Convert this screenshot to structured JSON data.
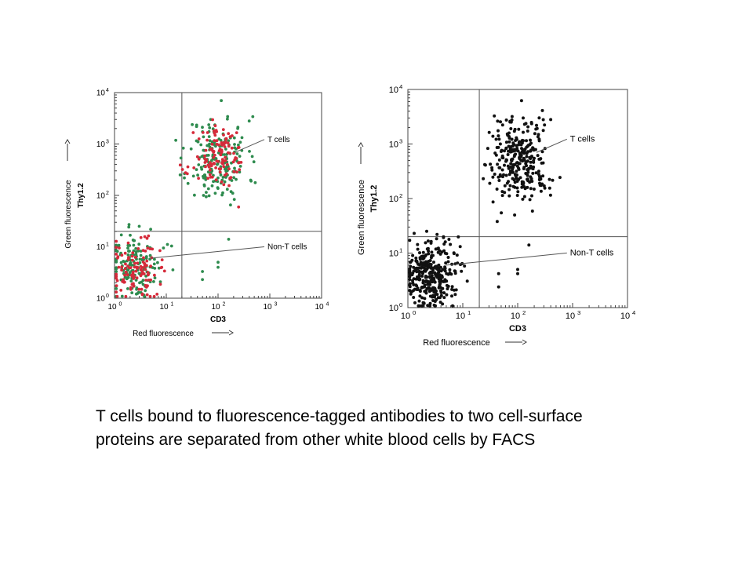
{
  "caption": "T cells bound to fluorescence-tagged antibodies to two cell-surface proteins are separated from other white blood cells by FACS",
  "chart_data": [
    {
      "type": "scatter",
      "x_scale": "log",
      "y_scale": "log",
      "xlim": [
        1,
        10000
      ],
      "ylim": [
        1,
        10000
      ],
      "x_ticks": [
        "10",
        "10",
        "10",
        "10",
        "10"
      ],
      "x_tick_exponents": [
        "0",
        "1",
        "2",
        "3",
        "4"
      ],
      "y_ticks": [
        "10",
        "10",
        "10",
        "10",
        "10"
      ],
      "y_tick_exponents": [
        "0",
        "1",
        "2",
        "3",
        "4"
      ],
      "xlabel": "CD3",
      "xlabel_sub": "Red fluorescence",
      "ylabel": "Thy1.2",
      "ylabel_sub": "Green fluorescence",
      "gates": {
        "x": 20,
        "y": 20
      },
      "annotations": [
        {
          "text": "T cells",
          "x": 900,
          "y": 1100,
          "point_x": 220,
          "point_y": 700
        },
        {
          "text": "Non-T cells",
          "x": 900,
          "y": 9,
          "point_x": 5,
          "point_y": 6
        }
      ],
      "series": [
        {
          "color": "#2e8b4e",
          "role": "green",
          "clusters": [
            {
              "cx": 100,
              "cy": 500,
              "sx": 0.29,
              "sy": 0.42,
              "n": 190,
              "seed": 11
            },
            {
              "cx": 2.6,
              "cy": 4.0,
              "sx": 0.25,
              "sy": 0.32,
              "n": 150,
              "seed": 12
            }
          ],
          "outliers": [
            [
              400,
              2800
            ],
            [
              240,
              2000
            ],
            [
              160,
              14
            ],
            [
              50,
              3.3
            ],
            [
              50,
              2.3
            ],
            [
              100,
              5
            ],
            [
              100,
              4
            ],
            [
              3,
              25
            ],
            [
              5,
              22
            ]
          ]
        },
        {
          "color": "#d62a3a",
          "role": "red",
          "clusters": [
            {
              "cx": 110,
              "cy": 500,
              "sx": 0.25,
              "sy": 0.3,
              "n": 120,
              "seed": 21
            },
            {
              "cx": 2.5,
              "cy": 3.6,
              "sx": 0.23,
              "sy": 0.26,
              "n": 110,
              "seed": 22
            }
          ],
          "outliers": []
        }
      ]
    },
    {
      "type": "scatter",
      "x_scale": "log",
      "y_scale": "log",
      "xlim": [
        1,
        10000
      ],
      "ylim": [
        1,
        10000
      ],
      "x_ticks": [
        "10",
        "10",
        "10",
        "10",
        "10"
      ],
      "x_tick_exponents": [
        "0",
        "1",
        "2",
        "3",
        "4"
      ],
      "y_ticks": [
        "10",
        "10",
        "10",
        "10",
        "10"
      ],
      "y_tick_exponents": [
        "0",
        "1",
        "2",
        "3",
        "4"
      ],
      "xlabel": "CD3",
      "xlabel_sub": "Red fluorescence",
      "ylabel": "Thy1.2",
      "ylabel_sub": "Green fluorescence",
      "gates": {
        "x": 20,
        "y": 20
      },
      "annotations": [
        {
          "text": "T cells",
          "x": 900,
          "y": 1100,
          "point_x": 220,
          "point_y": 700
        },
        {
          "text": "Non-T cells",
          "x": 900,
          "y": 9,
          "point_x": 5,
          "point_y": 6
        }
      ],
      "series": [
        {
          "color": "#111111",
          "role": "black",
          "clusters": [
            {
              "cx": 100,
              "cy": 480,
              "sx": 0.28,
              "sy": 0.38,
              "n": 300,
              "seed": 31
            },
            {
              "cx": 2.4,
              "cy": 3.8,
              "sx": 0.26,
              "sy": 0.3,
              "n": 320,
              "seed": 32
            }
          ],
          "outliers": [
            [
              400,
              2800
            ],
            [
              220,
              2200
            ],
            [
              160,
              14
            ],
            [
              45,
              4.2
            ],
            [
              45,
              2.4
            ],
            [
              100,
              5
            ],
            [
              100,
              4.2
            ],
            [
              2.2,
              25
            ],
            [
              3.4,
              22
            ],
            [
              1.3,
              23
            ]
          ]
        }
      ]
    }
  ]
}
